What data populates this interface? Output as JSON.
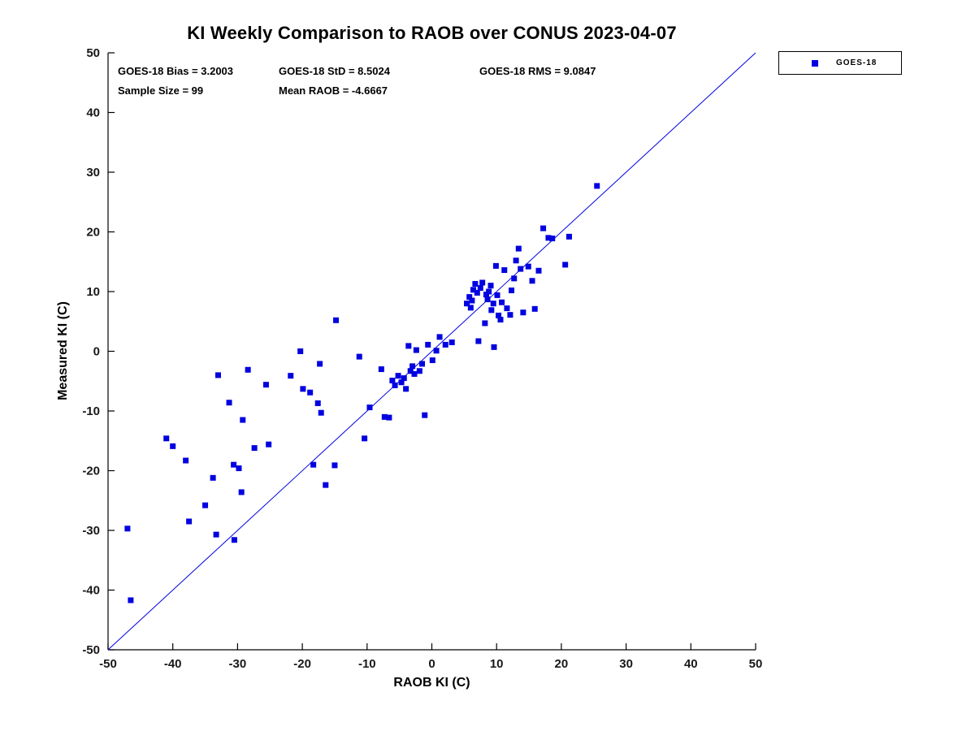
{
  "chart_data": {
    "type": "scatter",
    "title": "KI Weekly Comparison to RAOB over CONUS 2023-04-07",
    "xlabel": "RAOB KI (C)",
    "ylabel": "Measured KI (C)",
    "xlim": [
      -50,
      50
    ],
    "ylim": [
      -50,
      50
    ],
    "xticks": [
      -50,
      -40,
      -30,
      -20,
      -10,
      0,
      10,
      20,
      30,
      40,
      50
    ],
    "yticks": [
      -50,
      -40,
      -30,
      -20,
      -10,
      0,
      10,
      20,
      30,
      40,
      50
    ],
    "grid": false,
    "legend_position": "outside-top-right",
    "legend_label": "GOES-18",
    "colors": {
      "marker": "#0000E0",
      "line": "#0000E0",
      "axis": "#000000",
      "text": "#000000"
    },
    "stats": {
      "bias": "GOES-18 Bias = 3.2003",
      "std": "GOES-18 StD = 8.5024",
      "rms": "GOES-18 RMS = 9.0847",
      "sample": "Sample Size = 99",
      "mean_raob": "Mean RAOB = -4.6667"
    },
    "reference_line": {
      "from": [
        -50,
        -50
      ],
      "to": [
        50,
        50
      ]
    },
    "series": [
      {
        "name": "GOES-18",
        "marker": "square",
        "points": [
          [
            -47.0,
            -29.7
          ],
          [
            -46.5,
            -41.7
          ],
          [
            -41.0,
            -14.6
          ],
          [
            -40.0,
            -15.9
          ],
          [
            -38.0,
            -18.3
          ],
          [
            -37.5,
            -28.5
          ],
          [
            -35.0,
            -25.8
          ],
          [
            -33.8,
            -21.2
          ],
          [
            -33.3,
            -30.7
          ],
          [
            -33.0,
            -4.0
          ],
          [
            -31.3,
            -8.6
          ],
          [
            -30.6,
            -19.0
          ],
          [
            -30.5,
            -31.6
          ],
          [
            -29.8,
            -19.6
          ],
          [
            -29.4,
            -23.6
          ],
          [
            -29.2,
            -11.5
          ],
          [
            -28.4,
            -3.1
          ],
          [
            -27.4,
            -16.2
          ],
          [
            -25.6,
            -5.6
          ],
          [
            -25.2,
            -15.6
          ],
          [
            -21.8,
            -4.1
          ],
          [
            -20.3,
            0.0
          ],
          [
            -19.9,
            -6.3
          ],
          [
            -18.8,
            -6.9
          ],
          [
            -18.3,
            -19.0
          ],
          [
            -17.6,
            -8.7
          ],
          [
            -17.3,
            -2.1
          ],
          [
            -17.1,
            -10.3
          ],
          [
            -16.4,
            -22.4
          ],
          [
            -15.0,
            -19.1
          ],
          [
            -14.8,
            5.2
          ],
          [
            -11.2,
            -0.9
          ],
          [
            -10.4,
            -14.6
          ],
          [
            -9.6,
            -9.4
          ],
          [
            -7.8,
            -3.0
          ],
          [
            -7.3,
            -11.0
          ],
          [
            -6.6,
            -11.1
          ],
          [
            -6.1,
            -4.9
          ],
          [
            -5.7,
            -5.7
          ],
          [
            -5.2,
            -4.1
          ],
          [
            -4.7,
            -5.2
          ],
          [
            -4.3,
            -4.5
          ],
          [
            -4.0,
            -6.3
          ],
          [
            -3.6,
            0.9
          ],
          [
            -3.3,
            -3.3
          ],
          [
            -3.0,
            -2.5
          ],
          [
            -2.7,
            -3.8
          ],
          [
            -2.4,
            0.2
          ],
          [
            -1.9,
            -3.3
          ],
          [
            -1.5,
            -2.1
          ],
          [
            -1.1,
            -10.7
          ],
          [
            -0.6,
            1.1
          ],
          [
            0.1,
            -1.5
          ],
          [
            0.7,
            0.1
          ],
          [
            1.2,
            2.4
          ],
          [
            2.1,
            1.1
          ],
          [
            3.1,
            1.5
          ],
          [
            5.4,
            8.0
          ],
          [
            5.8,
            9.1
          ],
          [
            6.0,
            7.3
          ],
          [
            6.2,
            8.5
          ],
          [
            6.4,
            10.3
          ],
          [
            6.7,
            11.3
          ],
          [
            7.0,
            9.8
          ],
          [
            7.2,
            1.7
          ],
          [
            7.5,
            10.6
          ],
          [
            7.8,
            11.5
          ],
          [
            8.2,
            4.7
          ],
          [
            8.4,
            9.5
          ],
          [
            8.6,
            8.7
          ],
          [
            8.8,
            10.0
          ],
          [
            9.1,
            11.0
          ],
          [
            9.2,
            6.9
          ],
          [
            9.5,
            8.0
          ],
          [
            9.6,
            0.7
          ],
          [
            9.9,
            14.3
          ],
          [
            10.1,
            9.4
          ],
          [
            10.3,
            6.0
          ],
          [
            10.6,
            5.3
          ],
          [
            10.8,
            8.2
          ],
          [
            11.2,
            13.6
          ],
          [
            11.6,
            7.2
          ],
          [
            12.1,
            6.1
          ],
          [
            12.3,
            10.2
          ],
          [
            12.7,
            12.2
          ],
          [
            13.0,
            15.2
          ],
          [
            13.4,
            17.2
          ],
          [
            13.7,
            13.8
          ],
          [
            14.1,
            6.5
          ],
          [
            14.9,
            14.2
          ],
          [
            15.5,
            11.8
          ],
          [
            15.9,
            7.1
          ],
          [
            16.5,
            13.5
          ],
          [
            17.2,
            20.6
          ],
          [
            18.0,
            19.0
          ],
          [
            18.6,
            18.9
          ],
          [
            20.6,
            14.5
          ],
          [
            21.2,
            19.2
          ],
          [
            25.5,
            27.7
          ]
        ]
      }
    ]
  }
}
